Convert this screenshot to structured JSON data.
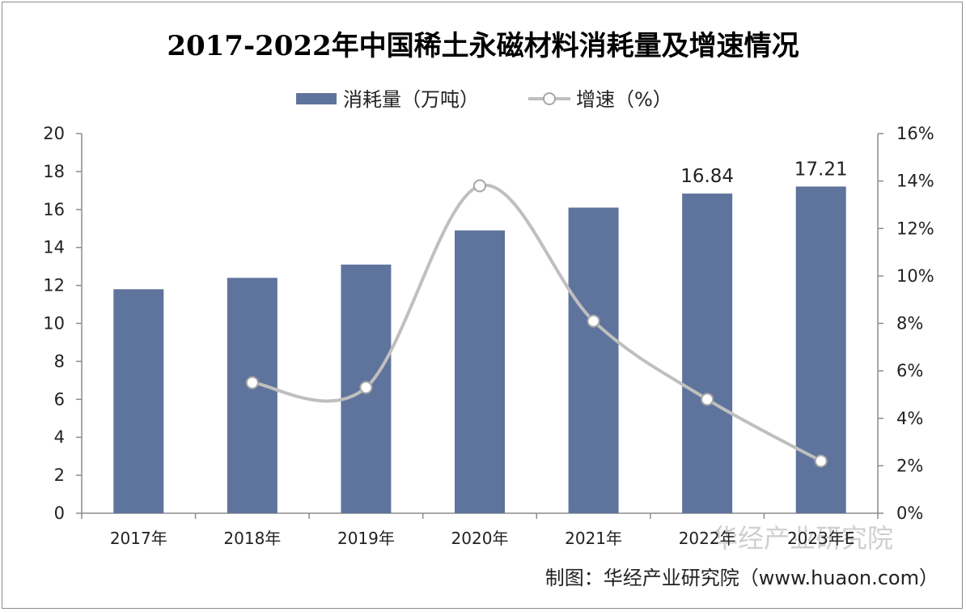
{
  "chart_data": {
    "type": "bar",
    "title": "2017-2022年中国稀土永磁材料消耗量及增速情况",
    "categories": [
      "2017年",
      "2018年",
      "2019年",
      "2020年",
      "2021年",
      "2022年",
      "2023年E"
    ],
    "series": [
      {
        "name": "消耗量（万吨）",
        "type": "bar",
        "axis": "left",
        "color": "#5f749c",
        "values": [
          11.8,
          12.4,
          13.1,
          14.9,
          16.1,
          16.84,
          17.21
        ],
        "data_labels": [
          "",
          "",
          "",
          "",
          "",
          "16.84",
          "17.21"
        ]
      },
      {
        "name": "增速（%）",
        "type": "line",
        "axis": "right",
        "color": "#bfbfbf",
        "smooth": true,
        "values": [
          null,
          5.5,
          5.3,
          13.8,
          8.1,
          4.8,
          2.2
        ]
      }
    ],
    "y_left": {
      "min": 0,
      "max": 20,
      "step": 2,
      "ticks": [
        "0",
        "2",
        "4",
        "6",
        "8",
        "10",
        "12",
        "14",
        "16",
        "18",
        "20"
      ]
    },
    "y_right": {
      "min": 0,
      "max": 16,
      "step": 2,
      "ticks": [
        "0%",
        "2%",
        "4%",
        "6%",
        "8%",
        "10%",
        "12%",
        "14%",
        "16%"
      ]
    },
    "grid": false,
    "legend_position": "top-center"
  },
  "source": "制图：华经产业研究院（www.huaon.com）",
  "watermark": {
    "line1": "华经产业研究院",
    "line2": "www.huaon.com"
  }
}
